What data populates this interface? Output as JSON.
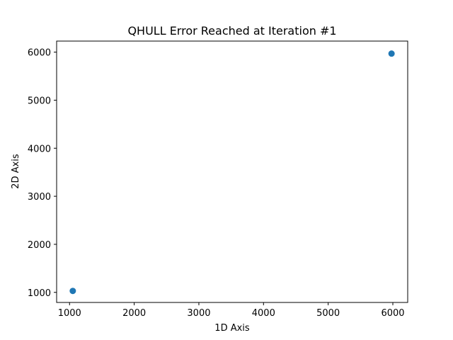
{
  "chart_data": {
    "type": "scatter",
    "title": "QHULL Error Reached at Iteration #1",
    "xlabel": "1D Axis",
    "ylabel": "2D Axis",
    "xlim": [
      800,
      6230
    ],
    "ylim": [
      790,
      6230
    ],
    "xticks": [
      1000,
      2000,
      3000,
      4000,
      5000,
      6000
    ],
    "yticks": [
      1000,
      2000,
      3000,
      4000,
      5000,
      6000
    ],
    "grid": false,
    "legend": "none",
    "series": [
      {
        "color": "#1f77b4",
        "points": [
          {
            "x": 1050,
            "y": 1030
          },
          {
            "x": 5980,
            "y": 5970
          }
        ]
      }
    ]
  }
}
